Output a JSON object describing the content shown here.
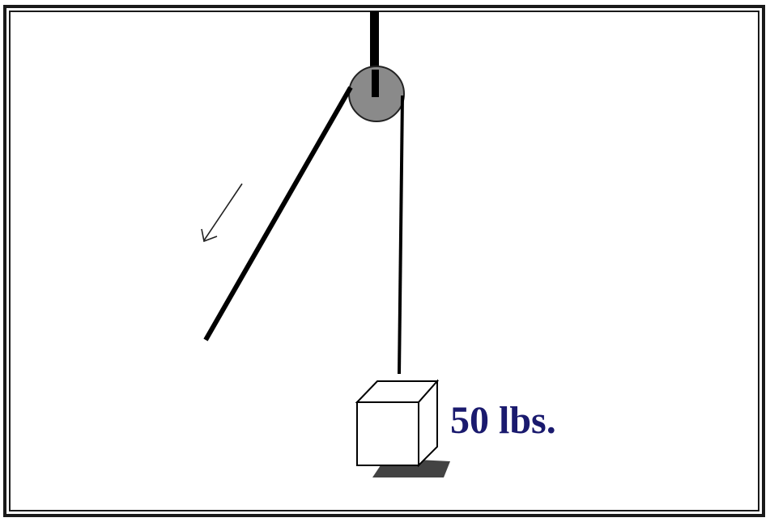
{
  "diagram": {
    "weight_label": "50 lbs.",
    "colors": {
      "border": "#1a1a1a",
      "rope": "#000000",
      "pulley": "#8a8a8a",
      "pulley_outline": "#222222",
      "box_fill": "#ffffff",
      "box_stroke": "#000000",
      "shadow": "#222222",
      "label": "#1a1a6e",
      "arrow": "#222222"
    },
    "icons": {
      "pulley": "pulley-icon",
      "arrow": "pull-direction-arrow-icon",
      "box": "weight-box-icon"
    }
  }
}
